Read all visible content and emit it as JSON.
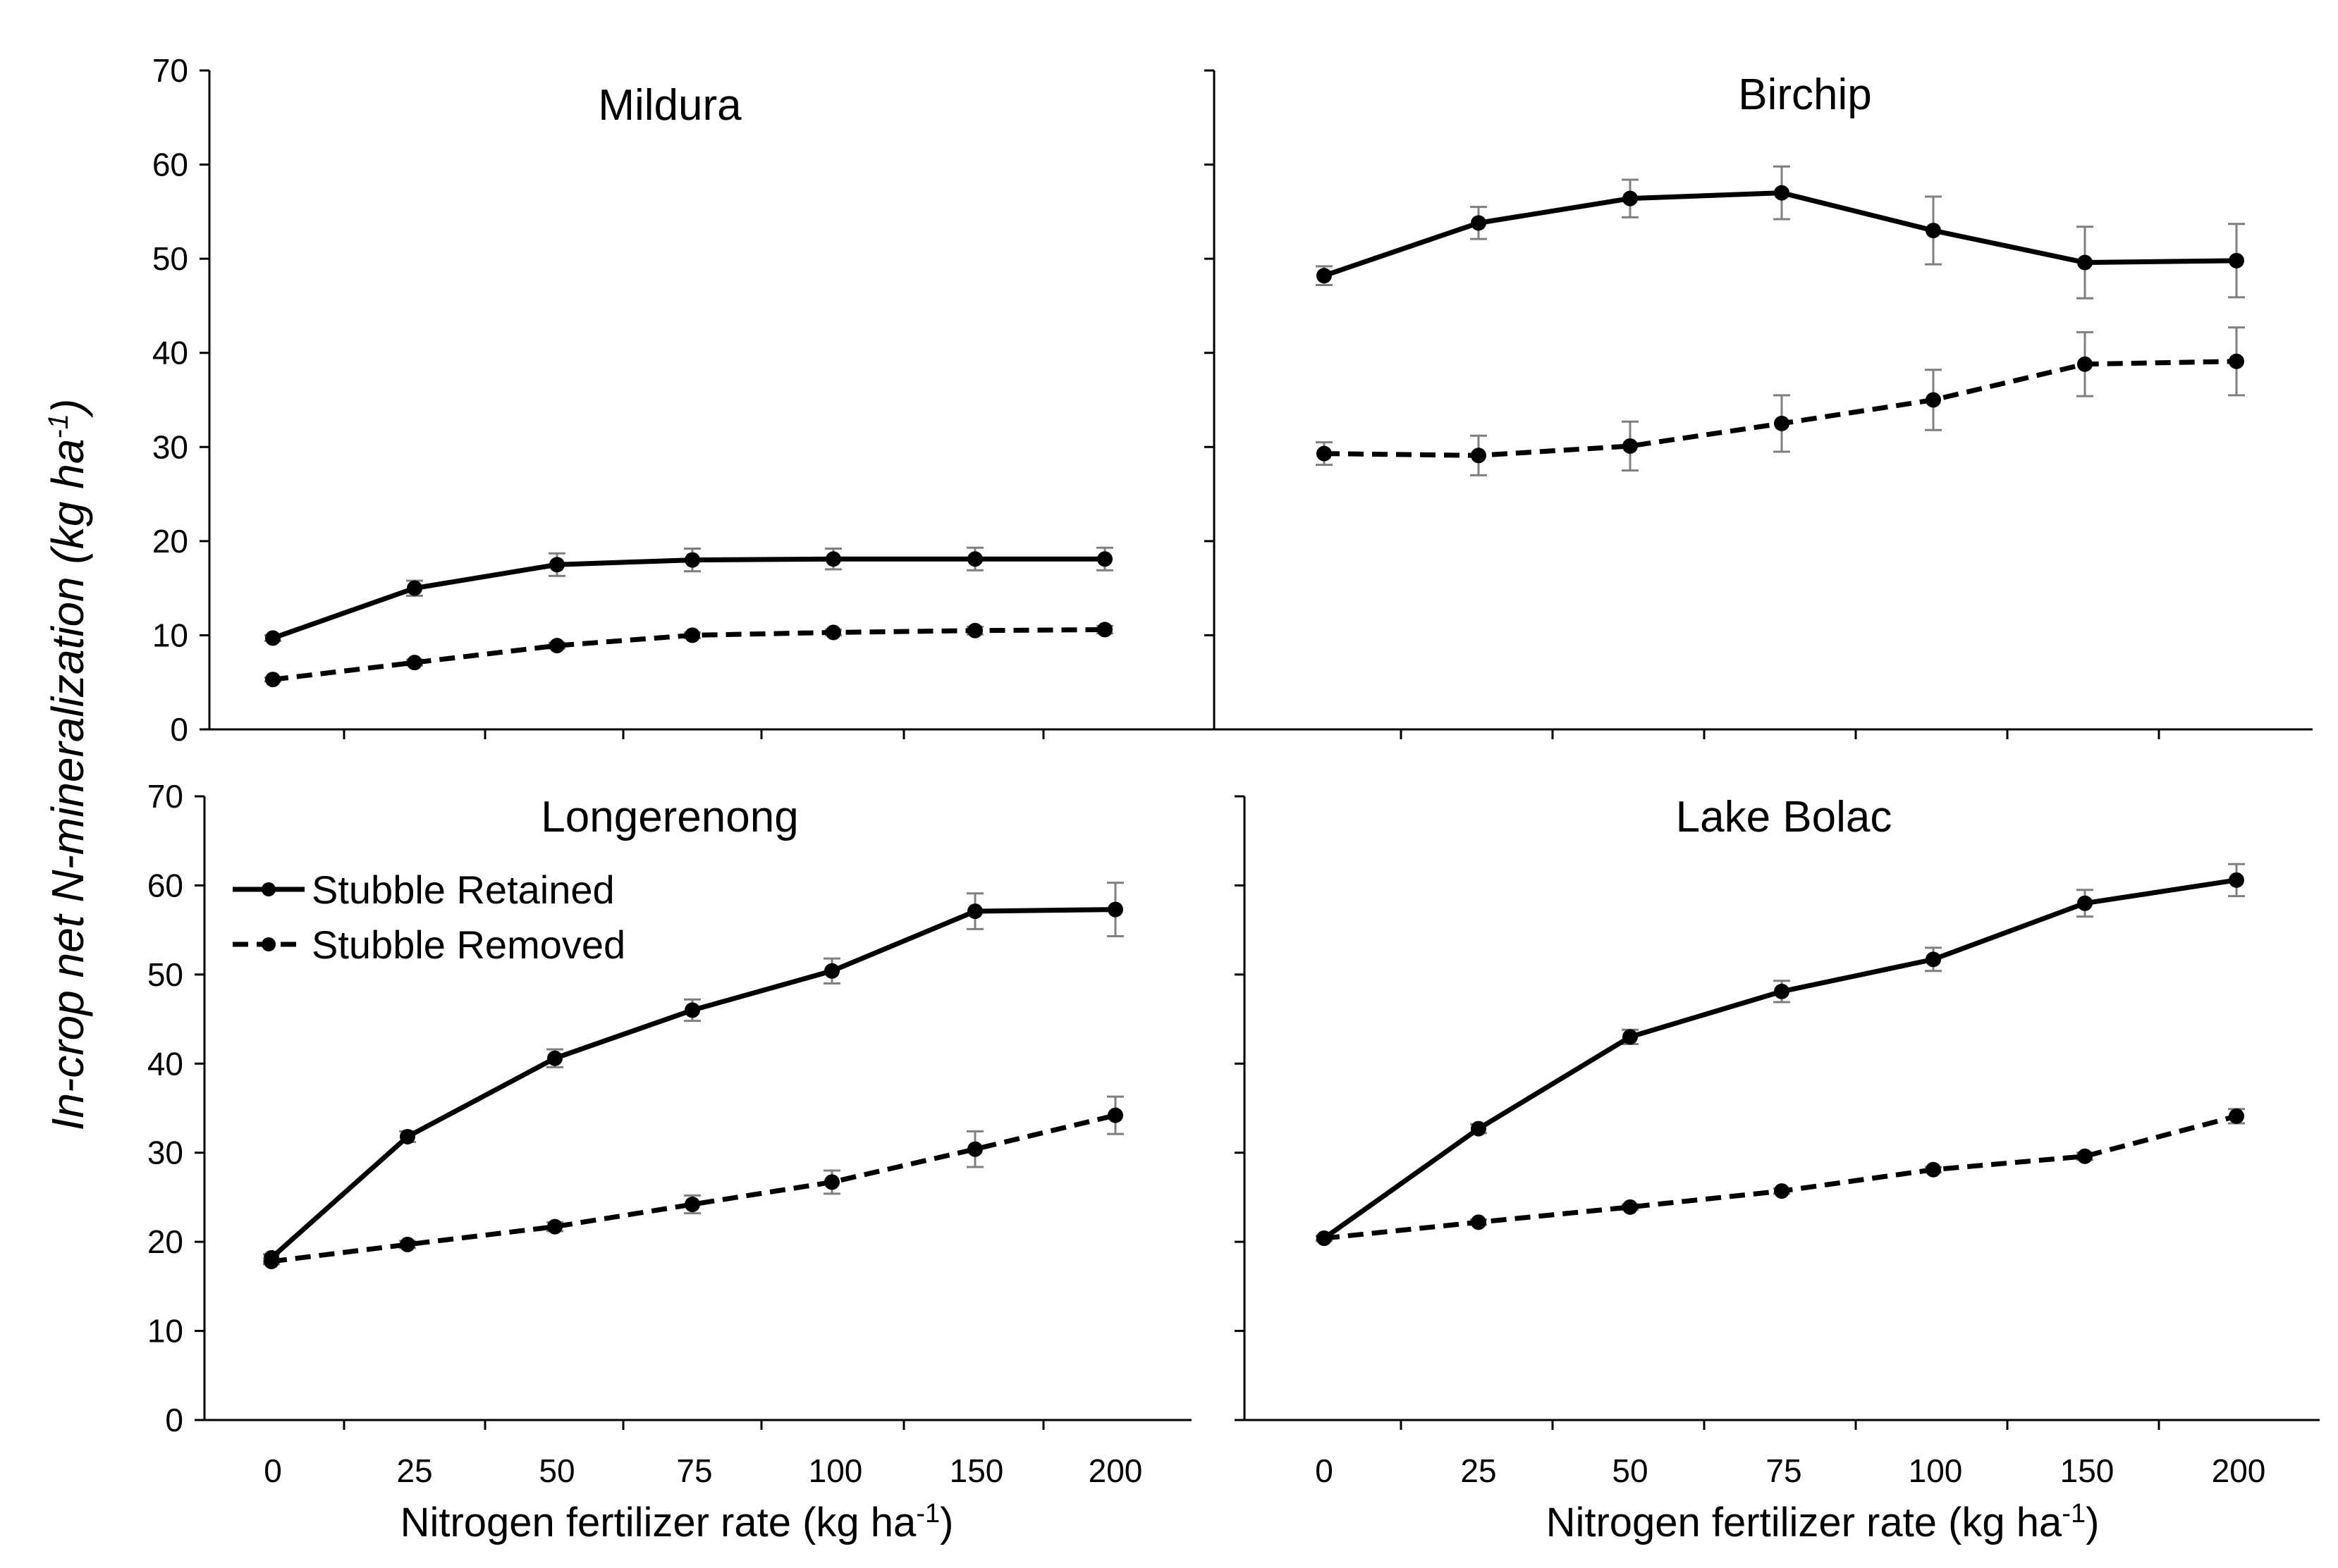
{
  "figure": {
    "ylabel_main": "In-crop net N-mineralization (kg ha",
    "ylabel_sup": "-1",
    "ylabel_end": ")",
    "xlabel_main": "Nitrogen  fertilizer rate (kg ha",
    "xlabel_sup": "-1",
    "xlabel_end": ")"
  },
  "legend": {
    "retained": "Stubble Retained",
    "removed": "Stubble Removed"
  },
  "colors": {
    "line": "#000000",
    "errorbar": "#7f7f7f",
    "background": "#ffffff"
  },
  "chart_data": [
    {
      "type": "line",
      "title": "Mildura",
      "categories": [
        "0",
        "25",
        "50",
        "75",
        "100",
        "150",
        "200"
      ],
      "ylim": [
        0,
        70
      ],
      "yticks": [
        0,
        10,
        20,
        30,
        40,
        50,
        60,
        70
      ],
      "series": [
        {
          "name": "Stubble Retained",
          "style": "solid",
          "values": [
            9.7,
            15.0,
            17.5,
            18.0,
            18.1,
            18.1,
            18.1
          ],
          "errors": [
            0.3,
            0.8,
            1.2,
            1.2,
            1.1,
            1.2,
            1.2
          ]
        },
        {
          "name": "Stubble Removed",
          "style": "dashed",
          "values": [
            5.3,
            7.1,
            8.9,
            10.0,
            10.3,
            10.5,
            10.6
          ],
          "errors": [
            0.2,
            0.3,
            0.3,
            0.3,
            0.3,
            0.4,
            0.4
          ]
        }
      ]
    },
    {
      "type": "line",
      "title": "Birchip",
      "categories": [
        "0",
        "25",
        "50",
        "75",
        "100",
        "150",
        "200"
      ],
      "ylim": [
        0,
        70
      ],
      "yticks": [
        0,
        10,
        20,
        30,
        40,
        50,
        60,
        70
      ],
      "series": [
        {
          "name": "Stubble Retained",
          "style": "solid",
          "values": [
            48.2,
            53.8,
            56.4,
            57.0,
            53.0,
            49.6,
            49.8
          ],
          "errors": [
            1.0,
            1.7,
            2.0,
            2.8,
            3.6,
            3.8,
            3.9
          ]
        },
        {
          "name": "Stubble Removed",
          "style": "dashed",
          "values": [
            29.3,
            29.1,
            30.1,
            32.5,
            35.0,
            38.8,
            39.1
          ],
          "errors": [
            1.2,
            2.1,
            2.6,
            3.0,
            3.2,
            3.4,
            3.6
          ]
        }
      ]
    },
    {
      "type": "line",
      "title": "Longerenong",
      "categories": [
        "0",
        "25",
        "50",
        "75",
        "100",
        "150",
        "200"
      ],
      "ylim": [
        0,
        70
      ],
      "yticks": [
        0,
        10,
        20,
        30,
        40,
        50,
        60,
        70
      ],
      "series": [
        {
          "name": "Stubble Retained",
          "style": "solid",
          "values": [
            18.2,
            31.8,
            40.6,
            46.0,
            50.4,
            57.1,
            57.3
          ],
          "errors": [
            0.4,
            0.6,
            1.0,
            1.2,
            1.4,
            2.0,
            3.0
          ]
        },
        {
          "name": "Stubble Removed",
          "style": "dashed",
          "values": [
            17.8,
            19.7,
            21.7,
            24.2,
            26.7,
            30.4,
            34.2
          ],
          "errors": [
            0.3,
            0.4,
            0.5,
            1.0,
            1.3,
            2.0,
            2.1
          ]
        }
      ]
    },
    {
      "type": "line",
      "title": "Lake Bolac",
      "categories": [
        "0",
        "25",
        "50",
        "75",
        "100",
        "150",
        "200"
      ],
      "ylim": [
        0,
        70
      ],
      "yticks": [
        0,
        10,
        20,
        30,
        40,
        50,
        60,
        70
      ],
      "series": [
        {
          "name": "Stubble Retained",
          "style": "solid",
          "values": [
            20.4,
            32.7,
            43.0,
            48.1,
            51.7,
            58.0,
            60.6
          ],
          "errors": [
            0.3,
            0.5,
            0.8,
            1.2,
            1.3,
            1.5,
            1.8
          ]
        },
        {
          "name": "Stubble Removed",
          "style": "dashed",
          "values": [
            20.4,
            22.2,
            23.9,
            25.7,
            28.1,
            29.6,
            34.1
          ],
          "errors": [
            0.2,
            0.3,
            0.3,
            0.3,
            0.3,
            0.4,
            0.8
          ]
        }
      ]
    }
  ]
}
